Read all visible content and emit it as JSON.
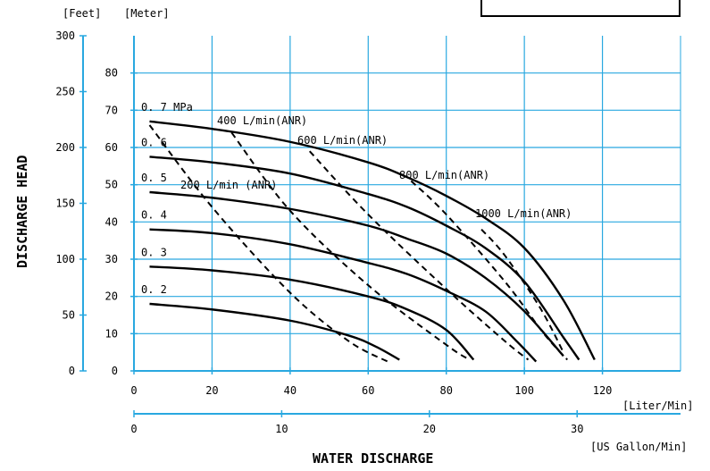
{
  "chart_data": {
    "type": "line",
    "units": {
      "feet": "[Feet]",
      "meter": "[Meter]",
      "liter": "[Liter/Min]",
      "gallon": "[US Gallon/Min]"
    },
    "ylabel": "DISCHARGE   HEAD",
    "xlabel": "WATER   DISCHARGE",
    "feet_axis": {
      "ylim": [
        0,
        300
      ],
      "ticks": [
        "0",
        "50",
        "100",
        "150",
        "200",
        "250",
        "300"
      ]
    },
    "meter_axis": {
      "ylim": [
        0,
        90
      ],
      "ticks": [
        "0",
        "10",
        "20",
        "30",
        "40",
        "50",
        "60",
        "70",
        "80"
      ]
    },
    "liter_axis": {
      "xlim": [
        0,
        140
      ],
      "ticks": [
        "0",
        "20",
        "40",
        "60",
        "80",
        "100",
        "120"
      ]
    },
    "gallon_axis": {
      "xlim": [
        0,
        37
      ],
      "ticks": [
        "0",
        "10",
        "20",
        "30"
      ]
    },
    "grid": true,
    "pressure_series": [
      {
        "name": "0. 7 MPa",
        "x": [
          4,
          20,
          40,
          60,
          70,
          80,
          90,
          100,
          110,
          118
        ],
        "y": [
          67,
          65,
          61.5,
          56,
          52,
          47,
          41,
          33,
          19,
          3
        ]
      },
      {
        "name": "0. 6",
        "x": [
          4,
          20,
          40,
          60,
          70,
          80,
          90,
          100,
          110,
          114
        ],
        "y": [
          57.5,
          56,
          53,
          47.5,
          44,
          39,
          33,
          24,
          9,
          3
        ]
      },
      {
        "name": "0. 5",
        "x": [
          4,
          20,
          40,
          60,
          70,
          80,
          90,
          100,
          110
        ],
        "y": [
          48,
          46.5,
          43.5,
          39,
          35.5,
          31.5,
          25,
          16,
          4
        ]
      },
      {
        "name": "0. 4",
        "x": [
          4,
          20,
          40,
          60,
          70,
          80,
          90,
          98,
          103
        ],
        "y": [
          38,
          37,
          34,
          29,
          26,
          21.5,
          16,
          8,
          2.5
        ]
      },
      {
        "name": "0. 3",
        "x": [
          4,
          20,
          40,
          60,
          70,
          80,
          87
        ],
        "y": [
          28,
          27,
          24.5,
          20,
          16.5,
          11,
          3
        ]
      },
      {
        "name": "0. 2",
        "x": [
          4,
          20,
          40,
          55,
          62,
          68
        ],
        "y": [
          18,
          16.5,
          13.5,
          9.5,
          6.5,
          3
        ]
      }
    ],
    "air_series": [
      {
        "name": "200 L/min (ANR)",
        "x": [
          4,
          20,
          40,
          55,
          65
        ],
        "y": [
          66,
          44,
          21,
          8,
          2.5
        ]
      },
      {
        "name": "400 L/min(ANR)",
        "x": [
          25,
          40,
          60,
          80,
          86
        ],
        "y": [
          64,
          43,
          23,
          7,
          3
        ]
      },
      {
        "name": "600 L/min(ANR)",
        "x": [
          45,
          60,
          80,
          95,
          101
        ],
        "y": [
          59,
          42,
          22,
          8,
          3
        ]
      },
      {
        "name": "800 L/min(ANR)",
        "x": [
          71,
          80,
          95,
          105,
          111
        ],
        "y": [
          51,
          42,
          24,
          10,
          3
        ]
      },
      {
        "name": "1000 L/min(ANR)",
        "x": [
          89,
          95,
          104,
          110
        ],
        "y": [
          38,
          31,
          17,
          5
        ]
      }
    ]
  }
}
